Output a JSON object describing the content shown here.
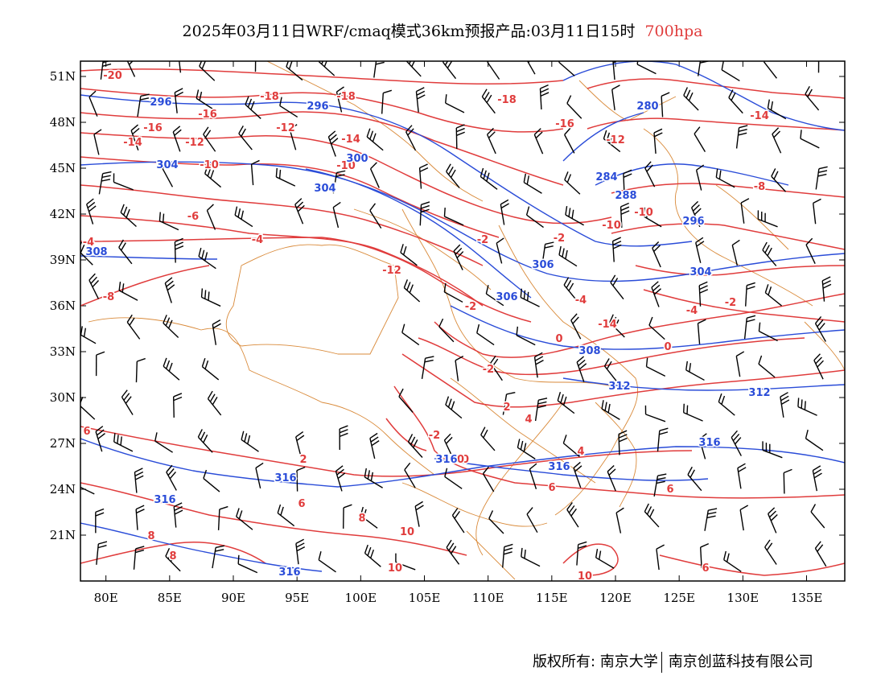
{
  "title": {
    "main": "2025年03月11日WRF/cmaq模式36km预报产品:03月11日15时",
    "level": "700hpa",
    "level_color": "#e03c3c"
  },
  "axes": {
    "x_ticks": [
      "80E",
      "85E",
      "90E",
      "95E",
      "100E",
      "105E",
      "110E",
      "115E",
      "120E",
      "125E",
      "130E",
      "135E"
    ],
    "y_ticks": [
      "51N",
      "48N",
      "45N",
      "42N",
      "39N",
      "36N",
      "33N",
      "30N",
      "27N",
      "24N",
      "21N"
    ]
  },
  "map_extent": {
    "lon": [
      78,
      138
    ],
    "lat": [
      18,
      52
    ]
  },
  "colors": {
    "temperature": "#e03c3c",
    "geopotential": "#2a4cd8",
    "boundary": "#d98a3a",
    "wind": "#000000"
  },
  "temperature_labels": [
    "-20",
    "-18",
    "-18",
    "-16",
    "-18",
    "-16",
    "-16",
    "-14",
    "-14",
    "-12",
    "-12",
    "-12",
    "-14",
    "-10",
    "-10",
    "-10",
    "-8",
    "-8",
    "-6",
    "-4",
    "-4",
    "-2",
    "-2",
    "-10",
    "-12",
    "-14",
    "-4",
    "-2",
    "-4",
    "-2",
    "0",
    "0",
    "-2",
    "-2",
    "2",
    "2",
    "4",
    "4",
    "6",
    "6",
    "6",
    "6",
    "6",
    "8",
    "8",
    "8",
    "10",
    "10",
    "10",
    "10",
    "10"
  ],
  "geopotential_labels": [
    "296",
    "296",
    "280",
    "284",
    "288",
    "296",
    "300",
    "304",
    "308",
    "304",
    "304",
    "306",
    "306",
    "308",
    "312",
    "312",
    "316",
    "316",
    "316",
    "316",
    "316",
    "316"
  ],
  "footer": {
    "left": "版权所有: 南京大学",
    "right": "南京创蓝科技有限公司"
  }
}
